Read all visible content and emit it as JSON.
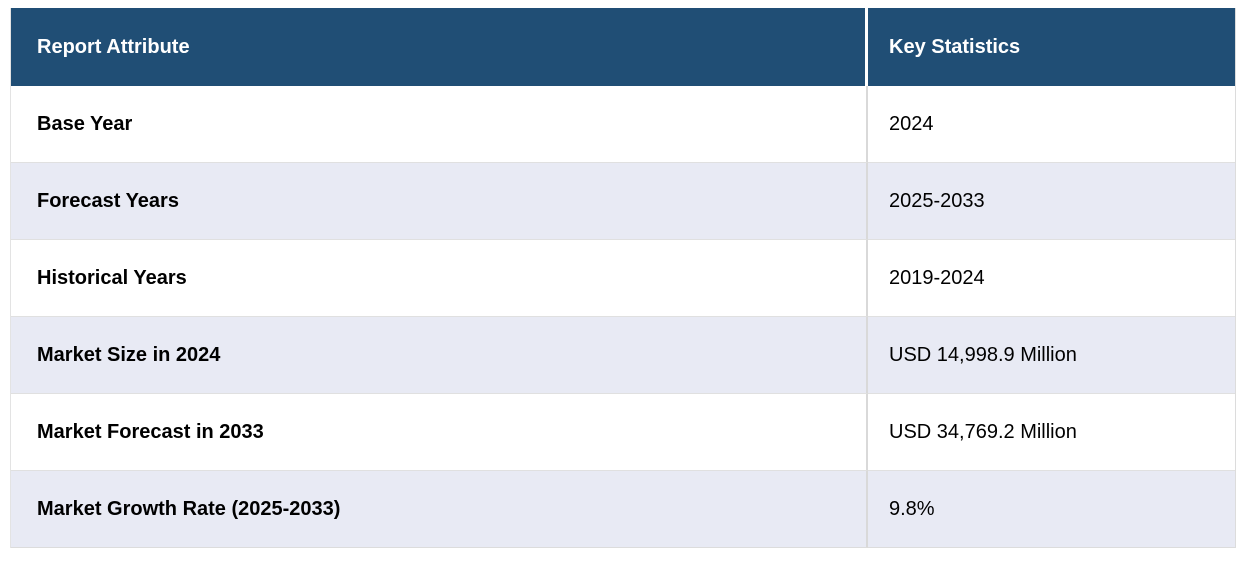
{
  "table": {
    "columns": {
      "attribute": "Report Attribute",
      "statistics": "Key Statistics"
    },
    "rows": [
      {
        "attribute": "Base Year",
        "value": "2024"
      },
      {
        "attribute": "Forecast Years",
        "value": "2025-2033"
      },
      {
        "attribute": "Historical Years",
        "value": "2019-2024"
      },
      {
        "attribute": "Market Size in 2024",
        "value": "USD 14,998.9 Million"
      },
      {
        "attribute": "Market Forecast in 2033",
        "value": "USD 34,769.2 Million"
      },
      {
        "attribute": "Market Growth Rate (2025-2033)",
        "value": "9.8%"
      }
    ],
    "colors": {
      "header_bg": "#204e75",
      "header_text": "#ffffff",
      "row_bg": "#ffffff",
      "row_alt_bg": "#e8eaf4",
      "divider": "#d9d9d9",
      "body_text": "#000000"
    }
  }
}
